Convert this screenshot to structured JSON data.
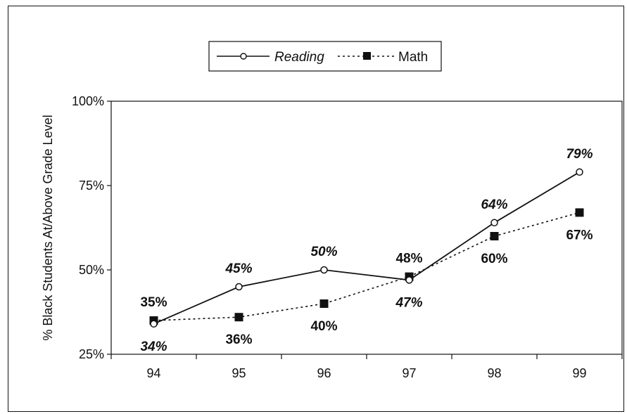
{
  "chart_data": {
    "type": "line",
    "categories": [
      "94",
      "95",
      "96",
      "97",
      "98",
      "99"
    ],
    "ylabel": "% Black Students At/Above Grade Level",
    "ylim": [
      25,
      100
    ],
    "yticks": [
      "25%",
      "50%",
      "75%",
      "100%"
    ],
    "ytick_values": [
      25,
      50,
      75,
      100
    ],
    "legend_position": "top-center",
    "series": [
      {
        "name": "Reading",
        "values": [
          34,
          45,
          50,
          47,
          64,
          79
        ],
        "labels": [
          "34%",
          "45%",
          "50%",
          "47%",
          "64%",
          "79%"
        ],
        "style": "solid-open-circle",
        "color": "#111111"
      },
      {
        "name": "Math",
        "values": [
          35,
          36,
          40,
          48,
          60,
          67
        ],
        "labels": [
          "35%",
          "36%",
          "40%",
          "48%",
          "60%",
          "67%"
        ],
        "style": "dotted-filled-square",
        "color": "#111111"
      }
    ]
  }
}
